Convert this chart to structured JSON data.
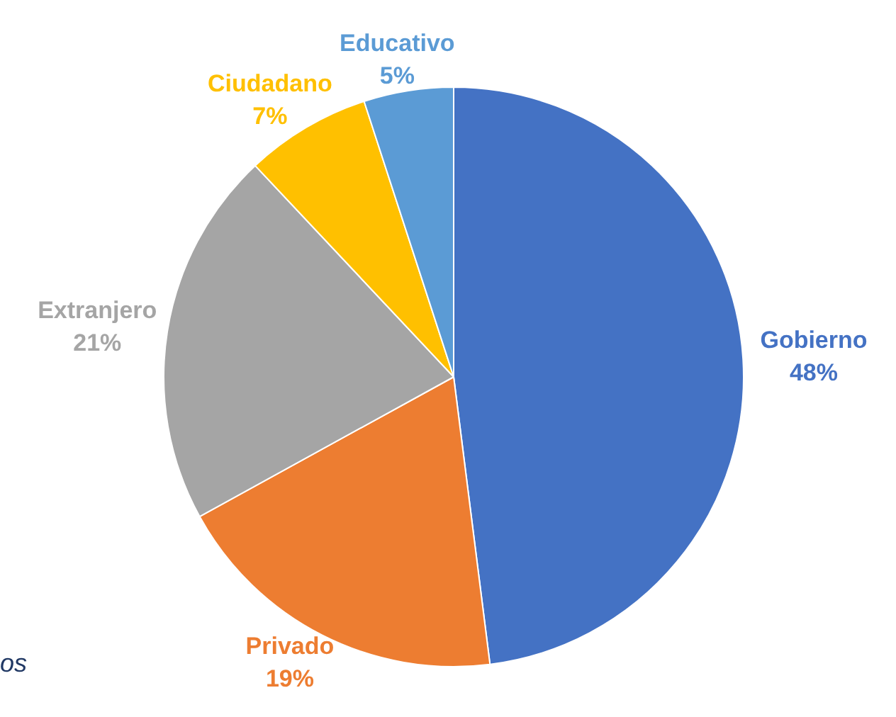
{
  "chart_data": {
    "type": "pie",
    "categories": [
      "Gobierno",
      "Privado",
      "Extranjero",
      "Ciudadano",
      "Educativo"
    ],
    "values": [
      48,
      19,
      21,
      7,
      5
    ],
    "colors": [
      "#4472c4",
      "#ed7d31",
      "#a5a5a5",
      "#ffc000",
      "#5b9bd5"
    ],
    "value_labels": [
      "48%",
      "19%",
      "21%",
      "7%",
      "5%"
    ],
    "legend": false,
    "annotations": [
      "os"
    ]
  }
}
